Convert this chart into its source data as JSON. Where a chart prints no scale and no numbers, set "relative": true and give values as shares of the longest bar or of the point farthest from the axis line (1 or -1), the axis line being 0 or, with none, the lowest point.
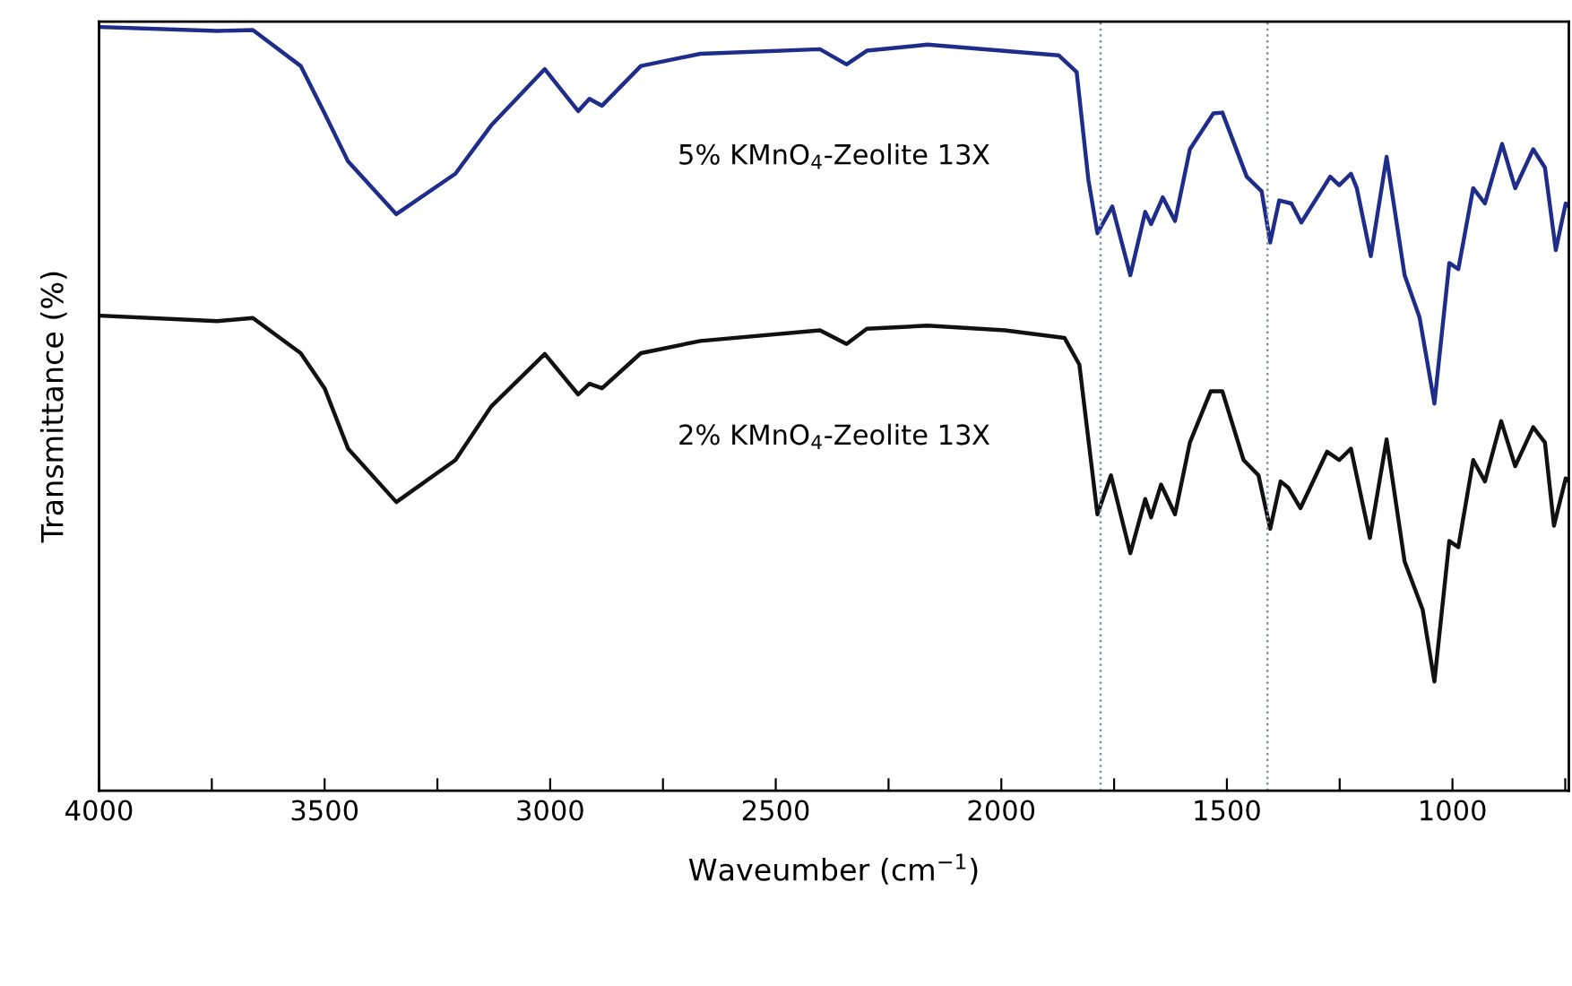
{
  "chart_data": {
    "type": "line",
    "relative": true,
    "xlabel": "Waveumber (cm$^{−1}$)",
    "ylabel": "Transmittance (%)",
    "xlim": [
      4000,
      742
    ],
    "xticks": [
      4000,
      {
        "value": 3750,
        "label": null
      },
      3500,
      {
        "value": 3250,
        "label": null
      },
      3000,
      {
        "value": 2750,
        "label": null
      },
      2500,
      {
        "value": 2250,
        "label": null
      },
      2000,
      {
        "value": 1750,
        "label": null
      },
      1500,
      {
        "value": 1250,
        "label": null
      },
      1000,
      {
        "value": 750,
        "label": null
      }
    ],
    "tick_labels": "x",
    "grid": false,
    "legend": false,
    "marker": "none",
    "line_style": "solid",
    "ref_lines": [
      {
        "axis": "x",
        "value": 1780,
        "label": null,
        "color": "#8090b0",
        "line_style": "dotted"
      },
      {
        "axis": "x",
        "value": 1410,
        "label": null,
        "color": "#8090b0",
        "line_style": "dotted"
      }
    ],
    "series": [
      {
        "name": "5% KMnO$_{4}$-Zeolite 13X",
        "color": "#1f2d8a",
        "x": [
          3996,
          3738,
          3659,
          3553,
          3500,
          3448,
          3341,
          3210,
          3131,
          3012,
          2938,
          2913,
          2885,
          2799,
          2667,
          2402,
          2343,
          2298,
          2164,
          1873,
          1833,
          1807,
          1787,
          1754,
          1714,
          1681,
          1668,
          1642,
          1615,
          1582,
          1530,
          1510,
          1456,
          1423,
          1404,
          1384,
          1357,
          1335,
          1271,
          1251,
          1225,
          1212,
          1181,
          1146,
          1106,
          1073,
          1040,
          1007,
          987,
          954,
          928,
          890,
          861,
          821,
          795,
          771,
          749,
          742
        ],
        "values": [
          1.0,
          0.995,
          0.996,
          0.949,
          0.887,
          0.824,
          0.755,
          0.808,
          0.871,
          0.945,
          0.89,
          0.906,
          0.897,
          0.949,
          0.965,
          0.971,
          0.951,
          0.969,
          0.977,
          0.963,
          0.941,
          0.8,
          0.73,
          0.765,
          0.675,
          0.758,
          0.742,
          0.777,
          0.746,
          0.84,
          0.887,
          0.888,
          0.804,
          0.785,
          0.718,
          0.773,
          0.769,
          0.744,
          0.804,
          0.793,
          0.808,
          0.789,
          0.7,
          0.83,
          0.675,
          0.62,
          0.507,
          0.691,
          0.683,
          0.789,
          0.769,
          0.847,
          0.789,
          0.84,
          0.816,
          0.708,
          0.769,
          0.765
        ]
      },
      {
        "name": "2% KMnO$_{4}$-Zeolite 13X",
        "color": "#111111",
        "x": [
          3996,
          3738,
          3659,
          3553,
          3500,
          3448,
          3341,
          3210,
          3131,
          3012,
          2938,
          2913,
          2885,
          2799,
          2667,
          2402,
          2343,
          2298,
          2164,
          1992,
          1860,
          1827,
          1787,
          1757,
          1714,
          1681,
          1668,
          1646,
          1615,
          1582,
          1536,
          1510,
          1463,
          1430,
          1404,
          1381,
          1364,
          1337,
          1278,
          1251,
          1225,
          1183,
          1146,
          1106,
          1066,
          1040,
          1007,
          987,
          954,
          928,
          892,
          861,
          821,
          795,
          775,
          749,
          742
        ],
        "values": [
          0.622,
          0.615,
          0.619,
          0.573,
          0.527,
          0.448,
          0.378,
          0.433,
          0.503,
          0.572,
          0.519,
          0.533,
          0.527,
          0.573,
          0.589,
          0.603,
          0.585,
          0.605,
          0.609,
          0.603,
          0.593,
          0.558,
          0.362,
          0.413,
          0.311,
          0.382,
          0.358,
          0.401,
          0.362,
          0.456,
          0.523,
          0.523,
          0.433,
          0.413,
          0.343,
          0.405,
          0.397,
          0.37,
          0.444,
          0.433,
          0.448,
          0.331,
          0.46,
          0.3,
          0.237,
          0.143,
          0.327,
          0.319,
          0.433,
          0.405,
          0.484,
          0.425,
          0.476,
          0.456,
          0.347,
          0.409,
          0.405
        ]
      }
    ]
  }
}
